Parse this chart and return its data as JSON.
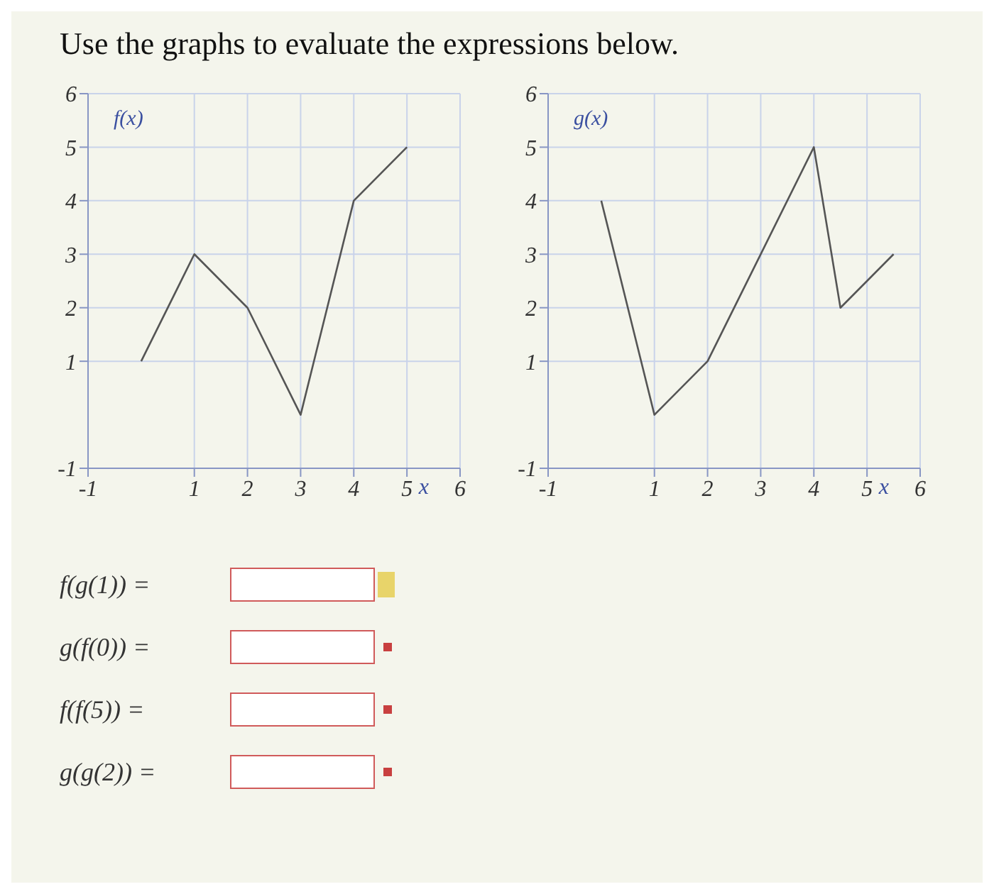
{
  "chart_data": [
    {
      "type": "line",
      "title": "Use the graphs to evaluate the expressions below.",
      "xlabel": "x",
      "x": [
        0,
        1,
        2,
        3,
        4,
        5
      ],
      "series": [
        {
          "name": "f(x)",
          "color": "#555555",
          "values": [
            1,
            3,
            2,
            0,
            4,
            5
          ]
        }
      ],
      "xlim": [
        -1,
        6
      ],
      "xticks": [
        -1,
        1,
        2,
        3,
        4,
        5,
        6
      ],
      "ylim": [
        -1,
        6
      ],
      "yticks": [
        -1,
        1,
        2,
        3,
        4,
        5,
        6
      ],
      "grid": true,
      "marker": "none",
      "line_style": "solid",
      "annotations": [
        "f(g(1)) =",
        "g(f(0)) =",
        "f(f(5)) =",
        "g(g(2)) ="
      ]
    },
    {
      "type": "line",
      "xlabel": "x",
      "x": [
        0,
        1,
        2,
        4,
        4.5,
        5.5
      ],
      "series": [
        {
          "name": "g(x)",
          "color": "#555555",
          "values": [
            4,
            0,
            1,
            5,
            2,
            3
          ]
        }
      ],
      "xlim": [
        -1,
        6
      ],
      "xticks": [
        -1,
        1,
        2,
        3,
        4,
        5,
        6
      ],
      "ylim": [
        -1,
        6
      ],
      "yticks": [
        -1,
        1,
        2,
        3,
        4,
        5,
        6
      ],
      "grid": true,
      "marker": "none",
      "line_style": "solid"
    }
  ]
}
